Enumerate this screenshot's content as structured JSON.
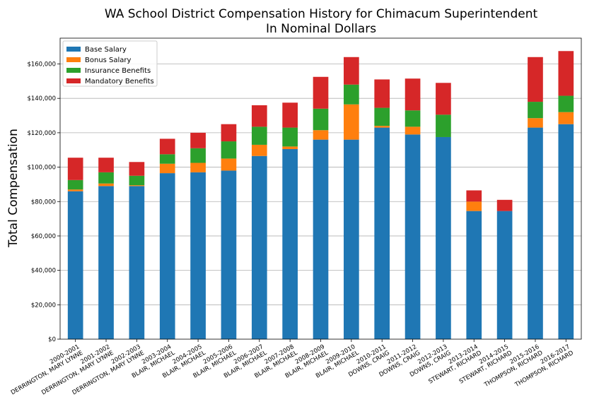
{
  "chart_data": {
    "type": "bar",
    "stacked": true,
    "title": "WA School District Compensation History for Chimacum Superintendent",
    "subtitle": "In Nominal Dollars",
    "xlabel": "",
    "ylabel": "Total Compensation",
    "ylim": [
      0,
      175000
    ],
    "yticks": [
      0,
      20000,
      40000,
      60000,
      80000,
      100000,
      120000,
      140000,
      160000
    ],
    "ytick_labels": [
      "$0",
      "$20,000",
      "$40,000",
      "$60,000",
      "$80,000",
      "$100,000",
      "$120,000",
      "$140,000",
      "$160,000"
    ],
    "grid": "horizontal",
    "legend_position": "top-left",
    "categories": [
      [
        "2000-2001",
        "DERRINGTON, MARY LYNNE"
      ],
      [
        "2001-2002",
        "DERRINGTON, MARY LYNNE"
      ],
      [
        "2002-2003",
        "DERRINGTON, MARY LYNNE"
      ],
      [
        "2003-2004",
        "BLAIR, MICHAEL"
      ],
      [
        "2004-2005",
        "BLAIR, MICHAEL"
      ],
      [
        "2005-2006",
        "BLAIR, MICHAEL"
      ],
      [
        "2006-2007",
        "BLAIR, MICHAEL"
      ],
      [
        "2007-2008",
        "BLAIR, MICHAEL"
      ],
      [
        "2008-2009",
        "BLAIR, MICHAEL"
      ],
      [
        "2009-2010",
        "BLAIR, MICHAEL"
      ],
      [
        "2010-2011",
        "DOWNS, CRAIG"
      ],
      [
        "2011-2012",
        "DOWNS, CRAIG"
      ],
      [
        "2012-2013",
        "DOWNS, CRAIG"
      ],
      [
        "2013-2014",
        "STEWART, RICHARD"
      ],
      [
        "2014-2015",
        "STEWART, RICHARD"
      ],
      [
        "2015-2016",
        "THOMPSON, RICHARD"
      ],
      [
        "2016-2017",
        "THOMPSON, RICHARD"
      ]
    ],
    "series": [
      {
        "name": "Base Salary",
        "color": "#1f77b4",
        "values": [
          86000,
          89000,
          89000,
          96500,
          97000,
          98000,
          106500,
          110500,
          116000,
          116000,
          123000,
          119000,
          117500,
          74500,
          74500,
          123000,
          125000
        ]
      },
      {
        "name": "Bonus Salary",
        "color": "#ff7f0e",
        "values": [
          1000,
          1500,
          500,
          5500,
          5500,
          7000,
          6500,
          1500,
          5500,
          20500,
          1000,
          4500,
          0,
          5500,
          0,
          5500,
          7000
        ]
      },
      {
        "name": "Insurance Benefits",
        "color": "#2ca02c",
        "values": [
          5500,
          6500,
          5500,
          5500,
          8500,
          10000,
          10500,
          11000,
          12500,
          11500,
          10500,
          9500,
          13000,
          0,
          0,
          9500,
          9500
        ]
      },
      {
        "name": "Mandatory Benefits",
        "color": "#d62728",
        "values": [
          13000,
          8500,
          8000,
          9000,
          9000,
          10000,
          12500,
          14500,
          18500,
          16000,
          16500,
          18500,
          18500,
          6500,
          6500,
          26000,
          26000
        ]
      }
    ]
  }
}
